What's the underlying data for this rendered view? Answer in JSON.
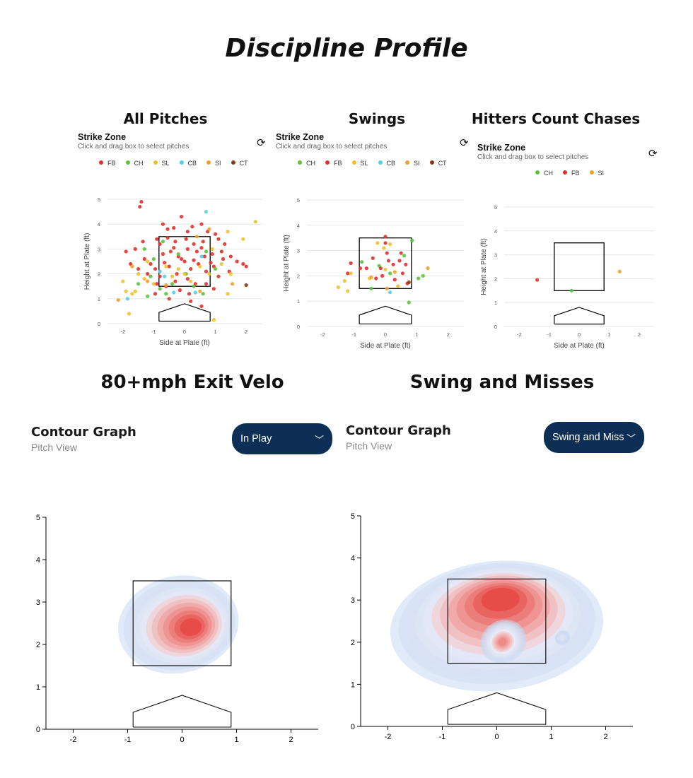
{
  "page_title": "Discipline Profile",
  "colors": {
    "FB": "#e2312d",
    "CH": "#5cc33c",
    "SL": "#f0c02b",
    "CB": "#4fd0ea",
    "SI": "#f0a030",
    "CT": "#8a3a10",
    "dropdown_bg": "#0e2f55"
  },
  "icons": {
    "reset": "refresh-icon",
    "dropdown": "chevron-down-icon"
  },
  "strike_zone_panels": [
    {
      "section_title": "All Pitches",
      "heading": "Strike Zone",
      "subheading": "Click and drag box to select pitches",
      "legend": [
        "FB",
        "CH",
        "SL",
        "CB",
        "SI",
        "CT"
      ],
      "xlabel": "Side at Plate (ft)",
      "ylabel": "Height at Plate (ft)"
    },
    {
      "section_title": "Swings",
      "heading": "Strike Zone",
      "subheading": "Click and drag box to select pitches",
      "legend": [
        "CH",
        "FB",
        "SL",
        "CB",
        "SI",
        "CT"
      ],
      "xlabel": "Side at Plate (ft)",
      "ylabel": "Height at Plate (ft)"
    },
    {
      "section_title": "Hitters Count Chases",
      "heading": "Strike Zone",
      "subheading": "Click and drag box to select pitches",
      "legend": [
        "CH",
        "FB",
        "SI"
      ],
      "xlabel": "Side at Plate (ft)",
      "ylabel": "Height at Plate (ft)"
    }
  ],
  "contour_panels": [
    {
      "section_title": "80+mph Exit Velo",
      "heading": "Contour Graph",
      "subheading": "Pitch View",
      "dropdown_value": "In Play"
    },
    {
      "section_title": "Swing and Misses",
      "heading": "Contour Graph",
      "subheading": "Pitch View",
      "dropdown_value": "Swing and Miss"
    }
  ],
  "chart_data": [
    {
      "type": "scatter",
      "title": "Strike Zone",
      "xlabel": "Side at Plate (ft)",
      "ylabel": "Height at Plate (ft)",
      "xlim": [
        -2.5,
        2.5
      ],
      "ylim": [
        0,
        5
      ],
      "x_ticks": [
        -2,
        -1,
        0,
        1,
        2
      ],
      "y_ticks": [
        0,
        1,
        2,
        3,
        4,
        5
      ],
      "strike_zone": {
        "x": [
          -0.83,
          0.83
        ],
        "y": [
          1.5,
          3.5
        ]
      },
      "series": [
        {
          "name": "FB",
          "points": [
            [
              -1.4,
              4.9
            ],
            [
              -1.45,
              4.7
            ],
            [
              -0.7,
              4.0
            ],
            [
              -0.55,
              3.8
            ],
            [
              -0.35,
              3.85
            ],
            [
              -0.1,
              4.3
            ],
            [
              0.1,
              3.7
            ],
            [
              0.25,
              3.9
            ],
            [
              0.55,
              4.0
            ],
            [
              0.75,
              3.7
            ],
            [
              1.0,
              3.6
            ],
            [
              -0.9,
              3.4
            ],
            [
              -0.8,
              3.2
            ],
            [
              -0.55,
              3.45
            ],
            [
              -0.3,
              3.3
            ],
            [
              0.05,
              3.4
            ],
            [
              0.3,
              3.2
            ],
            [
              0.6,
              3.3
            ],
            [
              1.1,
              3.4
            ],
            [
              1.3,
              3.2
            ],
            [
              -1.6,
              3.0
            ],
            [
              -1.9,
              2.9
            ],
            [
              -1.3,
              2.6
            ],
            [
              -1.1,
              2.4
            ],
            [
              -0.95,
              2.2
            ],
            [
              -0.7,
              2.8
            ],
            [
              -0.45,
              2.9
            ],
            [
              -0.2,
              2.7
            ],
            [
              0.1,
              3.0
            ],
            [
              0.4,
              2.9
            ],
            [
              0.65,
              2.7
            ],
            [
              0.9,
              2.8
            ],
            [
              1.2,
              2.9
            ],
            [
              1.5,
              2.7
            ],
            [
              1.9,
              2.4
            ],
            [
              -1.5,
              2.2
            ],
            [
              -1.2,
              2.0
            ],
            [
              -0.8,
              1.9
            ],
            [
              -0.5,
              2.3
            ],
            [
              -0.25,
              2.0
            ],
            [
              0.0,
              2.5
            ],
            [
              0.2,
              2.2
            ],
            [
              0.45,
              2.4
            ],
            [
              0.7,
              2.1
            ],
            [
              0.95,
              2.3
            ],
            [
              1.1,
              1.9
            ],
            [
              1.45,
              2.1
            ],
            [
              -0.9,
              1.6
            ],
            [
              -0.6,
              1.5
            ],
            [
              -0.3,
              1.7
            ],
            [
              0.1,
              1.8
            ],
            [
              0.35,
              1.6
            ],
            [
              0.7,
              1.6
            ],
            [
              0.95,
              1.4
            ],
            [
              -0.95,
              1.2
            ],
            [
              -0.5,
              1.0
            ],
            [
              0.2,
              0.9
            ],
            [
              0.55,
              0.7
            ],
            [
              -0.1,
              2.6
            ],
            [
              0.3,
              2.55
            ],
            [
              -0.65,
              2.45
            ],
            [
              0.85,
              2.45
            ],
            [
              1.7,
              2.5
            ],
            [
              2.0,
              2.3
            ],
            [
              -1.75,
              2.4
            ],
            [
              -0.35,
              3.05
            ],
            [
              0.55,
              3.05
            ],
            [
              -0.15,
              1.35
            ],
            [
              0.15,
              1.2
            ],
            [
              -1.35,
              3.3
            ],
            [
              1.25,
              2.6
            ]
          ]
        },
        {
          "name": "CH",
          "points": [
            [
              -1.3,
              3.0
            ],
            [
              -1.0,
              2.6
            ],
            [
              -1.1,
              1.9
            ],
            [
              -0.8,
              1.4
            ],
            [
              -0.6,
              1.2
            ],
            [
              -0.4,
              1.6
            ],
            [
              -0.2,
              2.8
            ],
            [
              0.3,
              1.5
            ],
            [
              0.6,
              1.2
            ],
            [
              -1.5,
              1.6
            ],
            [
              1.0,
              2.2
            ],
            [
              0.7,
              2.9
            ],
            [
              -0.7,
              3.3
            ],
            [
              0.05,
              2.0
            ],
            [
              -1.2,
              1.1
            ]
          ]
        },
        {
          "name": "SL",
          "points": [
            [
              -2.0,
              1.7
            ],
            [
              -1.9,
              1.3
            ],
            [
              -1.7,
              1.2
            ],
            [
              -1.6,
              1.3
            ],
            [
              -1.5,
              2.0
            ],
            [
              -1.3,
              1.8
            ],
            [
              -1.2,
              2.5
            ],
            [
              -1.0,
              1.6
            ],
            [
              -0.8,
              2.1
            ],
            [
              -0.6,
              2.3
            ],
            [
              -0.4,
              1.9
            ],
            [
              -0.2,
              2.2
            ],
            [
              0.0,
              2.0
            ],
            [
              0.2,
              1.7
            ],
            [
              0.5,
              2.3
            ],
            [
              0.8,
              2.0
            ],
            [
              1.2,
              2.4
            ],
            [
              1.4,
              3.7
            ],
            [
              1.9,
              3.4
            ],
            [
              2.3,
              4.1
            ],
            [
              1.5,
              2.0
            ],
            [
              -1.8,
              0.4
            ],
            [
              0.9,
              3.0
            ],
            [
              0.95,
              0.15
            ],
            [
              1.4,
              1.2
            ]
          ]
        },
        {
          "name": "CB",
          "points": [
            [
              -1.85,
              1.0
            ],
            [
              -0.8,
              2.1
            ],
            [
              -0.65,
              1.9
            ],
            [
              -0.35,
              1.25
            ],
            [
              0.35,
              1.25
            ],
            [
              0.55,
              2.7
            ],
            [
              0.7,
              4.5
            ]
          ]
        },
        {
          "name": "SI",
          "points": [
            [
              -2.15,
              0.95
            ],
            [
              -1.7,
              2.3
            ],
            [
              -1.2,
              1.7
            ],
            [
              0.4,
              3.5
            ],
            [
              0.5,
              1.3
            ],
            [
              1.55,
              1.6
            ],
            [
              0.8,
              3.8
            ],
            [
              -0.6,
              1.55
            ]
          ]
        },
        {
          "name": "CT",
          "points": [
            [
              2.0,
              1.55
            ]
          ]
        }
      ]
    },
    {
      "type": "scatter",
      "title": "Strike Zone",
      "xlabel": "Side at Plate (ft)",
      "ylabel": "Height at Plate (ft)",
      "xlim": [
        -2.5,
        2.5
      ],
      "ylim": [
        0,
        5
      ],
      "x_ticks": [
        -2,
        -1,
        0,
        1,
        2
      ],
      "y_ticks": [
        0,
        1,
        2,
        3,
        4,
        5
      ],
      "strike_zone": {
        "x": [
          -0.83,
          0.83
        ],
        "y": [
          1.5,
          3.5
        ]
      },
      "series": [
        {
          "name": "CH",
          "points": [
            [
              -0.75,
              2.55
            ],
            [
              -0.2,
              2.4
            ],
            [
              0.15,
              2.1
            ],
            [
              0.6,
              2.8
            ],
            [
              0.85,
              3.4
            ],
            [
              1.05,
              1.9
            ],
            [
              1.2,
              2.0
            ],
            [
              0.75,
              0.95
            ],
            [
              -0.45,
              1.5
            ]
          ]
        },
        {
          "name": "FB",
          "points": [
            [
              -1.1,
              2.5
            ],
            [
              -1.2,
              2.1
            ],
            [
              -0.8,
              2.3
            ],
            [
              -0.4,
              2.7
            ],
            [
              -0.15,
              2.3
            ],
            [
              0.0,
              3.55
            ],
            [
              0.0,
              3.3
            ],
            [
              0.05,
              2.9
            ],
            [
              -0.1,
              2.0
            ],
            [
              0.25,
              2.45
            ],
            [
              0.5,
              2.9
            ],
            [
              0.55,
              2.1
            ],
            [
              0.65,
              2.45
            ],
            [
              -0.3,
              1.9
            ],
            [
              0.3,
              1.85
            ],
            [
              0.45,
              2.6
            ],
            [
              -0.6,
              2.3
            ],
            [
              0.1,
              2.6
            ],
            [
              0.7,
              1.7
            ]
          ]
        },
        {
          "name": "SL",
          "points": [
            [
              -1.5,
              1.55
            ],
            [
              -1.3,
              1.8
            ],
            [
              -1.1,
              2.1
            ],
            [
              -1.2,
              1.4
            ],
            [
              -0.5,
              1.9
            ],
            [
              -0.25,
              3.3
            ],
            [
              0.15,
              3.25
            ],
            [
              0.0,
              2.25
            ],
            [
              0.4,
              1.6
            ],
            [
              -0.05,
              3.1
            ]
          ]
        },
        {
          "name": "CB",
          "points": [
            [
              0.15,
              1.35
            ]
          ]
        },
        {
          "name": "SI",
          "points": [
            [
              -0.45,
              1.95
            ],
            [
              0.3,
              2.15
            ],
            [
              1.35,
              2.3
            ],
            [
              0.05,
              1.5
            ]
          ]
        },
        {
          "name": "CT",
          "points": [
            [
              0.75,
              1.75
            ]
          ]
        }
      ]
    },
    {
      "type": "scatter",
      "title": "Strike Zone",
      "xlabel": "Side at Plate (ft)",
      "ylabel": "Height at Plate (ft)",
      "xlim": [
        -2.5,
        2.5
      ],
      "ylim": [
        0,
        5
      ],
      "x_ticks": [
        -2,
        -1,
        0,
        1,
        2
      ],
      "y_ticks": [
        0,
        1,
        2,
        3,
        4,
        5
      ],
      "strike_zone": {
        "x": [
          -0.83,
          0.83
        ],
        "y": [
          1.5,
          3.5
        ]
      },
      "series": [
        {
          "name": "CH",
          "points": [
            [
              -0.25,
              1.5
            ]
          ]
        },
        {
          "name": "FB",
          "points": [
            [
              -1.4,
              1.95
            ]
          ]
        },
        {
          "name": "SI",
          "points": [
            [
              1.35,
              2.3
            ]
          ]
        }
      ]
    },
    {
      "type": "heatmap",
      "title": "Contour Graph",
      "xlim": [
        -2.5,
        2.5
      ],
      "ylim": [
        0,
        5
      ],
      "x_ticks": [
        -2,
        -1,
        0,
        1,
        2
      ],
      "y_ticks": [
        0,
        1,
        2,
        3,
        4,
        5
      ],
      "strike_zone": {
        "x": [
          -0.9,
          0.9
        ],
        "y": [
          1.5,
          3.5
        ]
      },
      "density_peaks": [
        {
          "x": 0.15,
          "y": 2.4,
          "intensity": 1.0
        }
      ],
      "density_extent": {
        "x": [
          -1.3,
          1.05
        ],
        "y": [
          1.25,
          3.6
        ]
      }
    },
    {
      "type": "heatmap",
      "title": "Contour Graph",
      "xlim": [
        -2.5,
        2.5
      ],
      "ylim": [
        0,
        5
      ],
      "x_ticks": [
        -2,
        -1,
        0,
        1,
        2
      ],
      "y_ticks": [
        0,
        1,
        2,
        3,
        4,
        5
      ],
      "strike_zone": {
        "x": [
          -0.9,
          0.9
        ],
        "y": [
          1.5,
          3.5
        ]
      },
      "density_peaks": [
        {
          "x": 0.05,
          "y": 3.0,
          "intensity": 1.0
        },
        {
          "x": 0.1,
          "y": 2.0,
          "intensity": 0.75
        },
        {
          "x": 1.2,
          "y": 2.1,
          "intensity": 0.25
        }
      ],
      "density_extent": {
        "x": [
          -2.0,
          1.8
        ],
        "y": [
          0.75,
          3.9
        ]
      }
    }
  ]
}
